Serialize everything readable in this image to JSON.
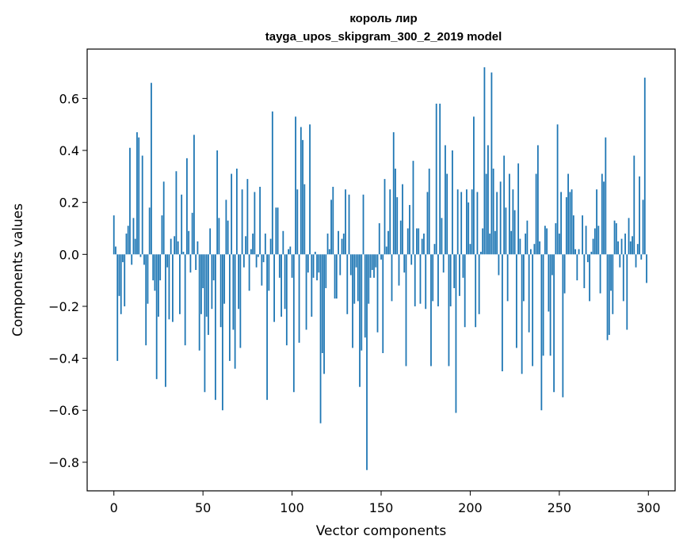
{
  "chart_data": {
    "type": "bar",
    "title": "король лир",
    "subtitle": "tayga_upos_skipgram_300_2_2019 model",
    "xlabel": "Vector components",
    "ylabel": "Components values",
    "xlim": [
      -15,
      315
    ],
    "ylim": [
      -0.91,
      0.79
    ],
    "xticks": [
      0,
      50,
      100,
      150,
      200,
      250,
      300
    ],
    "yticks": [
      -0.8,
      -0.6,
      -0.4,
      -0.2,
      0.0,
      0.2,
      0.4,
      0.6
    ],
    "ytick_labels": [
      "−0.8",
      "−0.6",
      "−0.4",
      "−0.2",
      "0.0",
      "0.2",
      "0.4",
      "0.6"
    ],
    "bar_color": "#1f77b4",
    "grid": false,
    "values": [
      0.15,
      0.03,
      -0.41,
      -0.16,
      -0.23,
      -0.03,
      -0.2,
      0.08,
      0.11,
      0.41,
      -0.04,
      0.14,
      0.06,
      0.47,
      0.45,
      -0.01,
      0.38,
      -0.04,
      -0.35,
      -0.19,
      0.18,
      0.66,
      -0.1,
      -0.14,
      -0.48,
      -0.24,
      -0.1,
      0.15,
      0.28,
      -0.51,
      -0.05,
      -0.25,
      0.06,
      -0.26,
      0.07,
      0.32,
      0.05,
      -0.23,
      0.23,
      0.01,
      -0.35,
      0.37,
      0.09,
      -0.07,
      0.16,
      0.46,
      -0.06,
      0.05,
      -0.37,
      -0.23,
      -0.13,
      -0.53,
      -0.24,
      -0.31,
      0.1,
      -0.21,
      -0.1,
      -0.56,
      0.4,
      0.14,
      -0.28,
      -0.6,
      -0.19,
      0.21,
      0.13,
      -0.41,
      0.31,
      -0.29,
      -0.44,
      0.33,
      -0.21,
      -0.36,
      0.25,
      -0.05,
      0.07,
      0.29,
      -0.14,
      0.02,
      0.08,
      0.24,
      -0.05,
      -0.01,
      0.26,
      -0.12,
      -0.03,
      0.08,
      -0.56,
      -0.14,
      0.06,
      0.55,
      -0.26,
      0.18,
      0.18,
      -0.09,
      -0.24,
      0.09,
      -0.21,
      -0.35,
      0.02,
      0.03,
      -0.09,
      -0.53,
      0.53,
      0.25,
      -0.34,
      0.49,
      0.44,
      0.27,
      -0.29,
      -0.07,
      0.5,
      -0.24,
      -0.09,
      0.01,
      -0.1,
      -0.07,
      -0.65,
      -0.38,
      -0.46,
      -0.13,
      0.08,
      0.02,
      0.21,
      0.26,
      -0.17,
      -0.17,
      0.09,
      -0.08,
      0.06,
      0.08,
      0.25,
      -0.23,
      0.23,
      -0.08,
      -0.36,
      -0.19,
      -0.05,
      -0.18,
      -0.51,
      -0.37,
      0.23,
      -0.32,
      -0.83,
      -0.19,
      -0.09,
      -0.06,
      -0.09,
      -0.05,
      -0.3,
      0.12,
      -0.02,
      -0.38,
      0.29,
      0.03,
      0.09,
      0.25,
      -0.18,
      0.47,
      0.33,
      0.22,
      -0.12,
      0.13,
      0.27,
      -0.07,
      -0.43,
      0.1,
      0.19,
      -0.04,
      0.36,
      -0.2,
      0.1,
      0.1,
      -0.19,
      0.06,
      0.08,
      -0.21,
      0.24,
      0.33,
      -0.43,
      -0.18,
      0.04,
      0.58,
      -0.2,
      0.58,
      0.14,
      -0.07,
      0.42,
      0.31,
      -0.43,
      -0.2,
      0.4,
      -0.13,
      -0.61,
      0.25,
      -0.16,
      0.24,
      -0.09,
      -0.28,
      0.25,
      0.2,
      0.04,
      0.25,
      0.53,
      -0.28,
      0.24,
      -0.23,
      0.01,
      0.1,
      0.72,
      0.31,
      0.42,
      0.08,
      0.7,
      0.33,
      0.09,
      0.24,
      -0.08,
      0.28,
      -0.45,
      0.38,
      0.18,
      -0.18,
      0.31,
      0.09,
      0.25,
      0.17,
      -0.36,
      0.35,
      0.06,
      -0.46,
      -0.18,
      0.08,
      0.13,
      -0.3,
      0.02,
      -0.43,
      0.04,
      0.31,
      0.42,
      0.05,
      -0.6,
      -0.39,
      0.11,
      0.1,
      -0.22,
      -0.39,
      -0.08,
      -0.53,
      0.12,
      0.5,
      0.08,
      0.24,
      -0.55,
      -0.15,
      0.22,
      0.31,
      0.24,
      0.25,
      0.15,
      0.02,
      -0.1,
      0.02,
      0.0,
      0.15,
      -0.13,
      0.11,
      -0.03,
      -0.18,
      0.01,
      0.06,
      0.1,
      0.25,
      0.11,
      -0.15,
      0.31,
      0.28,
      0.45,
      -0.33,
      -0.31,
      -0.14,
      -0.23,
      0.13,
      0.12,
      0.05,
      -0.05,
      0.06,
      -0.18,
      0.08,
      -0.29,
      0.14,
      0.05,
      0.07,
      0.38,
      -0.05,
      0.04,
      0.3,
      -0.02,
      0.21,
      0.68,
      -0.11
    ]
  }
}
